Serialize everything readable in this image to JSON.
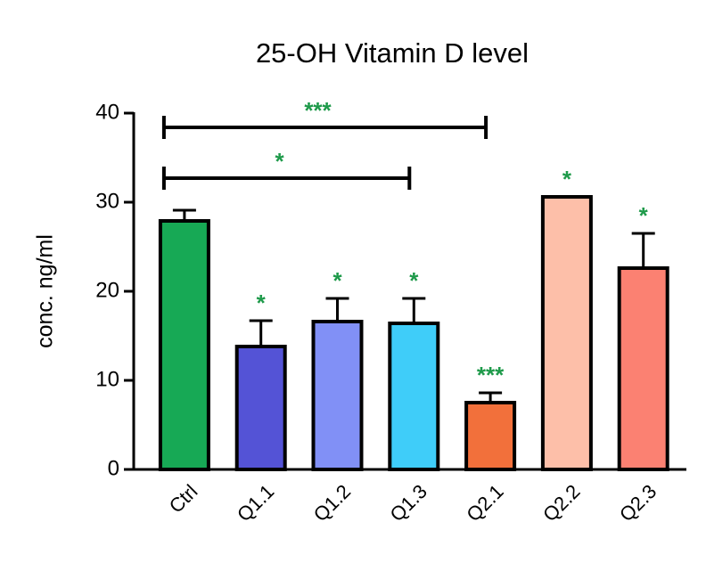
{
  "chart_data": {
    "type": "bar",
    "title": "25-OH Vitamin D level",
    "y_label": "conc. ng/ml",
    "categories": [
      "Ctrl",
      "Q1.1",
      "Q1.2",
      "Q1.3",
      "Q2.1",
      "Q2.2",
      "Q2.3"
    ],
    "values": [
      27.9,
      13.8,
      16.6,
      16.4,
      7.5,
      30.6,
      22.6
    ],
    "errors": [
      1.2,
      2.9,
      2.6,
      2.8,
      1.1,
      0,
      3.9
    ],
    "colors": [
      "#17a955",
      "#5453d6",
      "#8190f6",
      "#3fcdf9",
      "#f2703b",
      "#fdbfa9",
      "#fb8172"
    ],
    "annotations": [
      null,
      "*",
      "*",
      "*",
      "***",
      "*",
      "*"
    ],
    "annotation_color": "#1e9a4a",
    "brackets": [
      {
        "from": "Ctrl",
        "to": "Q2.1",
        "label": "***",
        "y": 38.4
      },
      {
        "from": "Ctrl",
        "to": "Q1.3",
        "label": "*",
        "y": 32.7
      }
    ],
    "ylim": [
      0,
      40
    ],
    "yticks": [
      0,
      10,
      20,
      30,
      40
    ],
    "grid": false
  }
}
